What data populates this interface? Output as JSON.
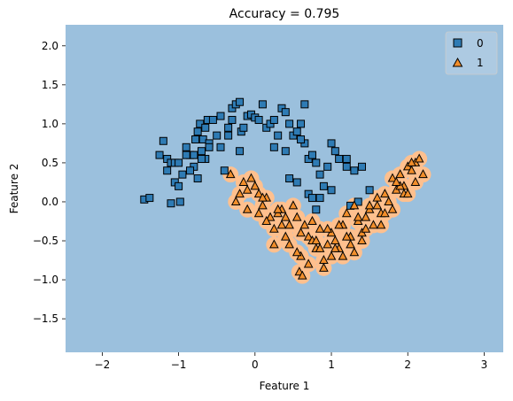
{
  "chart_data": {
    "type": "scatter",
    "title": "Accuracy = 0.795",
    "xlabel": "Feature 1",
    "ylabel": "Feature 2",
    "xlim": [
      -2.48,
      3.25
    ],
    "ylim": [
      -1.93,
      2.27
    ],
    "xticks": [
      "−2",
      "−1",
      "0",
      "1",
      "2",
      "3"
    ],
    "xtick_values": [
      -2,
      -1,
      0,
      1,
      2,
      3
    ],
    "yticks": [
      "2.0",
      "1.5",
      "1.0",
      "0.5",
      "0.0",
      "−0.5",
      "−1.0",
      "−1.5"
    ],
    "ytick_values": [
      2.0,
      1.5,
      1.0,
      0.5,
      0.0,
      -0.5,
      -1.0,
      -1.5
    ],
    "grid": false,
    "legend": {
      "placement": "top-right",
      "entries": [
        "0",
        "1"
      ]
    },
    "colors": {
      "background_region": "#9bc0dd",
      "decision_region_1": "#ffc08e",
      "class_0": "#2e7bb4",
      "class_1": "#f28e2b"
    },
    "series": [
      {
        "name": "0",
        "marker": "square",
        "x": [
          -1.45,
          -1.38,
          -1.25,
          -1.2,
          -1.15,
          -1.1,
          -1.05,
          -1.0,
          -0.95,
          -0.9,
          -0.85,
          -0.8,
          -0.78,
          -0.75,
          -0.72,
          -0.7,
          -0.68,
          -0.65,
          -0.62,
          -0.6,
          -0.55,
          -0.5,
          -0.45,
          -0.4,
          -0.35,
          -0.3,
          -0.25,
          -0.2,
          -0.18,
          -0.15,
          -0.1,
          -0.05,
          0.0,
          0.05,
          0.1,
          0.15,
          0.2,
          0.25,
          0.3,
          0.35,
          0.4,
          0.45,
          0.5,
          0.55,
          0.6,
          0.65,
          0.7,
          0.75,
          0.8,
          0.85,
          0.9,
          1.0,
          1.05,
          1.1,
          1.2,
          1.3,
          1.35,
          1.5,
          -1.1,
          -0.98,
          -0.85,
          -0.75,
          -0.65,
          -0.45,
          -0.35,
          0.45,
          0.55,
          0.7,
          0.75,
          0.8,
          0.85,
          1.0,
          1.25,
          -1.15,
          -1.05,
          -0.8,
          -0.7,
          -0.6,
          -0.2,
          0.25,
          0.4,
          0.65,
          0.95,
          1.2,
          -1.0,
          -0.9,
          -0.3,
          0.6,
          1.4
        ],
        "y": [
          0.03,
          0.05,
          0.6,
          0.78,
          0.55,
          0.5,
          0.25,
          0.2,
          0.35,
          0.7,
          0.6,
          0.45,
          0.8,
          0.9,
          1.0,
          0.65,
          0.8,
          0.95,
          1.05,
          0.75,
          1.05,
          0.85,
          1.1,
          0.4,
          0.95,
          1.2,
          1.25,
          1.28,
          0.9,
          0.95,
          1.1,
          1.12,
          1.08,
          1.05,
          1.25,
          0.95,
          1.0,
          1.05,
          0.85,
          1.2,
          1.15,
          1.0,
          0.85,
          0.9,
          1.0,
          1.25,
          0.55,
          0.6,
          0.5,
          0.35,
          0.2,
          0.75,
          0.65,
          0.55,
          0.55,
          0.4,
          0.0,
          0.15,
          -0.02,
          0.0,
          0.4,
          0.3,
          0.55,
          0.7,
          0.85,
          0.3,
          0.25,
          0.1,
          0.05,
          -0.1,
          0.05,
          0.15,
          -0.05,
          0.4,
          0.5,
          0.6,
          0.55,
          0.7,
          0.65,
          0.7,
          0.65,
          0.75,
          0.45,
          0.45,
          0.5,
          0.6,
          1.05,
          0.8,
          0.45
        ]
      },
      {
        "name": "1",
        "marker": "triangle",
        "x": [
          -0.32,
          -0.25,
          -0.2,
          -0.15,
          -0.1,
          -0.05,
          0.0,
          0.05,
          0.1,
          0.15,
          0.2,
          0.25,
          0.3,
          0.35,
          0.4,
          0.45,
          0.5,
          0.55,
          0.6,
          0.65,
          0.7,
          0.75,
          0.8,
          0.85,
          0.9,
          0.95,
          1.0,
          1.05,
          1.1,
          1.15,
          1.2,
          1.25,
          1.3,
          1.35,
          1.4,
          1.45,
          1.5,
          1.55,
          1.6,
          1.65,
          1.7,
          1.75,
          1.8,
          1.85,
          1.9,
          1.95,
          2.0,
          2.05,
          2.1,
          2.15,
          2.2,
          0.15,
          0.3,
          0.45,
          0.6,
          0.75,
          0.9,
          1.05,
          1.2,
          1.35,
          1.5,
          1.65,
          1.8,
          1.95,
          2.1,
          0.1,
          0.35,
          0.55,
          0.8,
          1.0,
          1.25,
          1.45,
          1.7,
          1.9,
          2.05,
          -0.1,
          0.05,
          0.4,
          0.7,
          0.95,
          1.15,
          1.4,
          1.6,
          1.85,
          2.0,
          0.58,
          0.62,
          0.25,
          0.85,
          1.1,
          1.3
        ],
        "y": [
          0.35,
          0.0,
          0.1,
          0.25,
          -0.1,
          0.3,
          0.2,
          0.1,
          -0.05,
          0.05,
          -0.2,
          -0.35,
          -0.15,
          -0.1,
          -0.45,
          -0.3,
          -0.05,
          -0.2,
          -0.7,
          -0.3,
          -0.45,
          -0.5,
          -0.6,
          -0.35,
          -0.75,
          -0.55,
          -0.4,
          -0.5,
          -0.6,
          -0.3,
          -0.15,
          -0.45,
          -0.65,
          -0.25,
          -0.4,
          -0.2,
          -0.1,
          -0.3,
          0.05,
          -0.15,
          0.1,
          0.0,
          0.3,
          0.15,
          0.35,
          0.2,
          0.45,
          0.4,
          0.5,
          0.55,
          0.35,
          -0.25,
          -0.1,
          -0.55,
          -0.4,
          -0.25,
          -0.85,
          -0.6,
          -0.45,
          -0.2,
          -0.05,
          -0.3,
          -0.1,
          0.1,
          0.25,
          0.05,
          -0.3,
          -0.65,
          -0.5,
          -0.7,
          -0.55,
          -0.35,
          -0.15,
          0.2,
          0.5,
          0.15,
          -0.15,
          -0.2,
          -0.8,
          -0.35,
          -0.7,
          -0.5,
          -0.05,
          0.25,
          0.1,
          -0.9,
          -0.95,
          -0.55,
          -0.6,
          -0.3,
          -0.05
        ]
      }
    ]
  }
}
